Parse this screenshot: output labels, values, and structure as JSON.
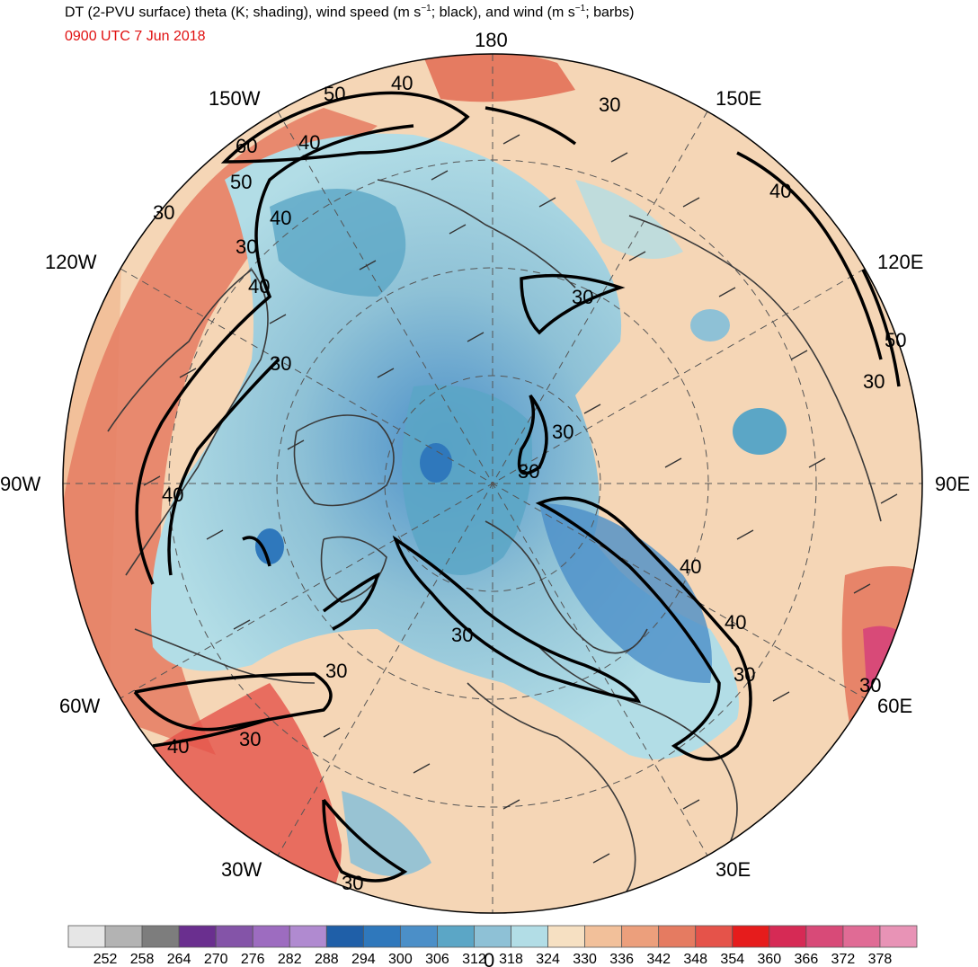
{
  "title_main": "DT (2-PVU surface) theta (K; shading), wind speed (m s",
  "title_sup1": "−1",
  "title_mid": "; black), and wind (m s",
  "title_sup2": "−1",
  "title_end": "; barbs)",
  "valid_time": "0900 UTC 7 Jun 2018",
  "longitude_labels": {
    "top": "180",
    "bottom": "0",
    "left": "90W",
    "right": "90E",
    "upper_left_150": "150W",
    "upper_right_150": "150E",
    "upper_left_120": "120W",
    "upper_right_120": "120E",
    "lower_left_60": "60W",
    "lower_right_60": "60E",
    "lower_left_30": "30W",
    "lower_right_30": "30E"
  },
  "contour_labels": [
    "50",
    "40",
    "30",
    "30",
    "60",
    "40",
    "30",
    "40",
    "50",
    "30",
    "30",
    "40",
    "40",
    "50",
    "30",
    "30",
    "30",
    "30",
    "40",
    "40",
    "30",
    "30",
    "30",
    "30",
    "40",
    "30",
    "30",
    "40"
  ],
  "colorbar": {
    "colors": [
      "#e6e6e6",
      "#b3b3b3",
      "#7d7d7d",
      "#6a2f8f",
      "#8454a8",
      "#9d6cc0",
      "#b08ad0",
      "#1f5fa8",
      "#2f78bc",
      "#4b8fc8",
      "#5ba6c6",
      "#8ec1d6",
      "#b2dde6",
      "#f6e0c2",
      "#f2c09a",
      "#ec9f7c",
      "#e57b61",
      "#e5534a",
      "#e61c1c",
      "#d62a55",
      "#d84a78",
      "#e06b95",
      "#e893b6"
    ],
    "labels": [
      "252",
      "258",
      "264",
      "270",
      "276",
      "282",
      "288",
      "294",
      "300",
      "306",
      "312",
      "318",
      "324",
      "330",
      "336",
      "342",
      "348",
      "354",
      "360",
      "366",
      "372",
      "378"
    ]
  }
}
